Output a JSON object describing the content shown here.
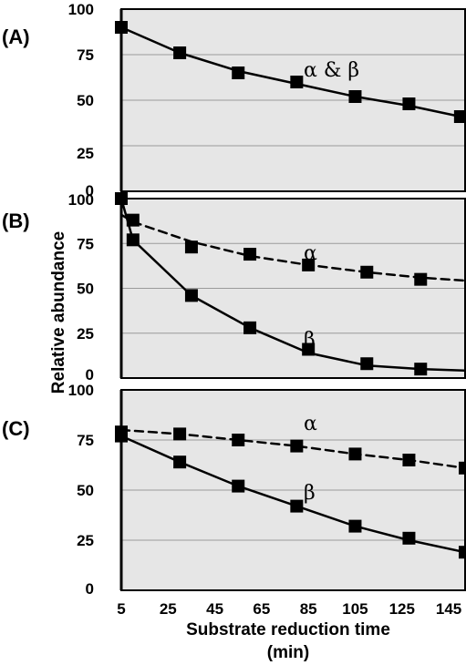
{
  "chart_data": {
    "type": "line",
    "ylabel": "Relative abundance",
    "xlabel_line1": "Substrate reduction time",
    "xlabel_line2": "(min)",
    "x_ticks": [
      "5",
      "25",
      "45",
      "65",
      "85",
      "105",
      "125",
      "145"
    ],
    "xlim": [
      5,
      152
    ],
    "panels": [
      {
        "label": "(A)",
        "ylim": [
          0,
          100
        ],
        "y_ticks": [
          "0",
          "25",
          "50",
          "75",
          "100"
        ],
        "grid": true,
        "series": [
          {
            "name": "α & β",
            "style": "solid",
            "x": [
              5,
              30,
              55,
              80,
              105,
              128,
              150
            ],
            "y": [
              90,
              76,
              65,
              60,
              52,
              48,
              41
            ],
            "curve_x": [
              5,
              30,
              55,
              80,
              105,
              128,
              150
            ],
            "curve_y": [
              90,
              76,
              66,
              59,
              52,
              47,
              41
            ]
          }
        ]
      },
      {
        "label": "(B)",
        "ylim": [
          0,
          100
        ],
        "y_ticks": [
          "0",
          "25",
          "50",
          "75",
          "100"
        ],
        "grid": true,
        "series": [
          {
            "name": "α",
            "style": "dashed",
            "x": [
              5,
              10,
              35,
              60,
              85,
              110,
              133,
              155
            ],
            "y": [
              100,
              88,
              73,
              69,
              63,
              59,
              55,
              54
            ],
            "curve_x": [
              5,
              10,
              35,
              60,
              85,
              110,
              133,
              155
            ],
            "curve_y": [
              91,
              87,
              76,
              68,
              63,
              59,
              56,
              54
            ]
          },
          {
            "name": "β",
            "style": "solid",
            "x": [
              10,
              35,
              60,
              85,
              110,
              133,
              155
            ],
            "y": [
              77,
              46,
              28,
              16,
              8,
              5,
              4
            ],
            "curve_x": [
              5,
              10,
              35,
              60,
              85,
              110,
              133,
              155
            ],
            "curve_y": [
              100,
              77,
              46,
              28,
              14,
              7,
              5,
              4
            ]
          }
        ]
      },
      {
        "label": "(C)",
        "ylim": [
          0,
          100
        ],
        "y_ticks": [
          "0",
          "25",
          "50",
          "75",
          "100"
        ],
        "grid": true,
        "series": [
          {
            "name": "α",
            "style": "dashed",
            "x": [
              5,
              30,
              55,
              80,
              105,
              128,
              152
            ],
            "y": [
              79,
              78,
              75,
              72,
              68,
              65,
              61
            ],
            "curve_x": [
              5,
              30,
              55,
              80,
              105,
              128,
              152
            ],
            "curve_y": [
              80,
              78,
              75,
              72,
              68,
              65,
              61
            ]
          },
          {
            "name": "β",
            "style": "solid",
            "x": [
              5,
              30,
              55,
              80,
              105,
              128,
              152
            ],
            "y": [
              77,
              64,
              52,
              42,
              32,
              26,
              19
            ],
            "curve_x": [
              5,
              30,
              55,
              80,
              105,
              128,
              152
            ],
            "curve_y": [
              77,
              64,
              52,
              42,
              32,
              25,
              19
            ]
          }
        ]
      }
    ]
  }
}
